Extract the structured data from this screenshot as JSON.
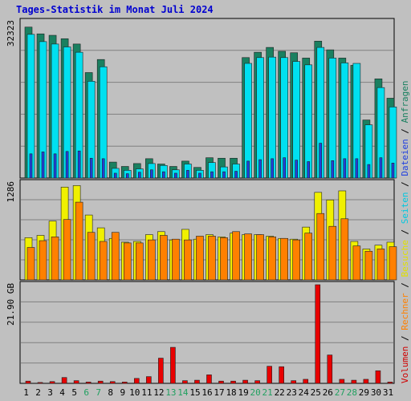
{
  "chart_data": {
    "type": "bar",
    "title": "Tages-Statistik im Monat Juli 2024",
    "days": [
      "1",
      "2",
      "3",
      "4",
      "5",
      "6",
      "7",
      "8",
      "9",
      "10",
      "11",
      "12",
      "13",
      "14",
      "15",
      "16",
      "17",
      "18",
      "19",
      "20",
      "21",
      "22",
      "23",
      "24",
      "25",
      "26",
      "27",
      "28",
      "29",
      "30",
      "31"
    ],
    "weekend_days": [
      "6",
      "7",
      "13",
      "14",
      "20",
      "21",
      "27",
      "28"
    ],
    "panels": [
      {
        "name": "requests",
        "max_label": "32323",
        "ylim": [
          0,
          32323
        ],
        "series": [
          {
            "name": "Anfragen",
            "color": "#1a8060",
            "values": [
              31200,
              29800,
              29500,
              28800,
              27700,
              21800,
              24500,
              3300,
              2400,
              3000,
              4000,
              2900,
              2400,
              3500,
              2200,
              4200,
              4100,
              4100,
              24900,
              26000,
              27000,
              26200,
              25900,
              24800,
              28300,
              26500,
              24800,
              23300,
              12000,
              20500,
              16500
            ]
          },
          {
            "name": "Seiten",
            "color": "#00e0f0",
            "values": [
              29700,
              28200,
              27700,
              27100,
              26000,
              20000,
              23000,
              2000,
              1600,
              1900,
              3000,
              2600,
              1700,
              2900,
              1600,
              3200,
              2300,
              2900,
              23700,
              24900,
              25000,
              24900,
              24100,
              23400,
              27000,
              24800,
              23800,
              23700,
              11000,
              18700,
              14700
            ]
          },
          {
            "name": "Dateien",
            "color": "#2040e0",
            "values": [
              5000,
              5400,
              5000,
              5500,
              5600,
              4100,
              4000,
              1000,
              900,
              1200,
              1700,
              1300,
              1000,
              1600,
              1000,
              1300,
              1300,
              1400,
              3500,
              3800,
              4000,
              4200,
              3700,
              3400,
              7200,
              3600,
              4000,
              4000,
              2800,
              4200,
              3100
            ]
          }
        ]
      },
      {
        "name": "visits",
        "max_label": "1286",
        "ylim": [
          0,
          1286
        ],
        "series": [
          {
            "name": "Besuche",
            "color": "#f0f000",
            "values": [
              560,
              590,
              780,
              1230,
              1250,
              860,
              690,
              550,
              500,
              510,
              600,
              640,
              530,
              670,
              540,
              600,
              570,
              620,
              600,
              600,
              580,
              550,
              540,
              700,
              1160,
              1060,
              1180,
              510,
              410,
              460,
              500
            ]
          },
          {
            "name": "Rechner",
            "color": "#ff8000",
            "values": [
              430,
              520,
              570,
              800,
              1030,
              630,
              510,
              630,
              490,
              490,
              530,
              590,
              540,
              530,
              580,
              580,
              560,
              640,
              610,
              600,
              570,
              550,
              530,
              620,
              880,
              710,
              810,
              450,
              380,
              410,
              440
            ]
          }
        ]
      },
      {
        "name": "volume",
        "max_label": "21.90 GB",
        "ylim": [
          0,
          21.9
        ],
        "series": [
          {
            "name": "Volumen",
            "color": "#e80000",
            "values": [
              0.5,
              0.2,
              0.4,
              1.3,
              0.6,
              0.3,
              0.5,
              0.4,
              0.3,
              1.1,
              1.5,
              5.6,
              8.0,
              0.6,
              0.7,
              1.9,
              0.5,
              0.5,
              0.7,
              0.6,
              3.8,
              3.7,
              0.6,
              0.9,
              21.9,
              6.3,
              0.9,
              0.7,
              0.9,
              2.8,
              0.3
            ]
          }
        ]
      }
    ],
    "right_legend": [
      {
        "text": "Volumen",
        "color": "#d00000"
      },
      {
        "text": " / ",
        "color": "#000000"
      },
      {
        "text": "Rechner",
        "color": "#ff8000"
      },
      {
        "text": " / ",
        "color": "#000000"
      },
      {
        "text": "Besuche",
        "color": "#e0e000"
      },
      {
        "text": " / ",
        "color": "#000000"
      },
      {
        "text": "Seiten",
        "color": "#00c8e0"
      },
      {
        "text": " / ",
        "color": "#000000"
      },
      {
        "text": "Dateien",
        "color": "#2040e0"
      },
      {
        "text": " / ",
        "color": "#000000"
      },
      {
        "text": "Anfragen",
        "color": "#1a8060"
      }
    ],
    "colors": {
      "background": "#c0c0c0",
      "plot_border": "#000000",
      "gridline": "#808080",
      "title": "#0000d0",
      "weekday_label": "#000000",
      "weekend_label": "#20a060"
    }
  }
}
